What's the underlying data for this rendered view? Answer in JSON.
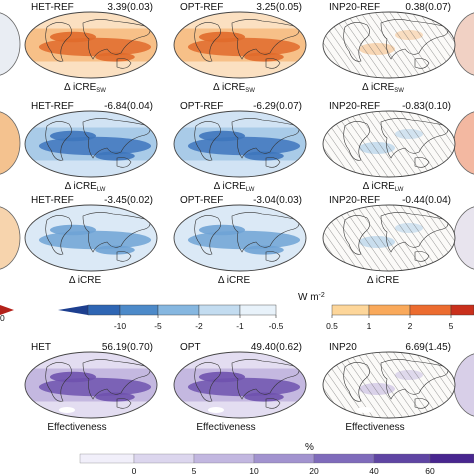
{
  "chart_data": {
    "type": "heatmap",
    "panels": [
      {
        "row": 0,
        "col": 0,
        "label": "HET-REF",
        "value": "3.39(0.03)",
        "caption": "Δ iCRE",
        "caption_sub": "SW",
        "palette": "warm",
        "intensity": 0.75
      },
      {
        "row": 0,
        "col": 1,
        "label": "OPT-REF",
        "value": "3.25(0.05)",
        "caption": "Δ iCRE",
        "caption_sub": "SW",
        "palette": "warm",
        "intensity": 0.72
      },
      {
        "row": 0,
        "col": 2,
        "label": "INP20-REF",
        "value": "0.38(0.07)",
        "caption": "Δ iCRE",
        "caption_sub": "SW",
        "palette": "warm",
        "intensity": 0.18,
        "hatched": true
      },
      {
        "row": 1,
        "col": 0,
        "label": "HET-REF",
        "value": "-6.84(0.04)",
        "caption": "Δ iCRE",
        "caption_sub": "LW",
        "palette": "cool",
        "intensity": 0.85
      },
      {
        "row": 1,
        "col": 1,
        "label": "OPT-REF",
        "value": "-6.29(0.07)",
        "caption": "Δ iCRE",
        "caption_sub": "LW",
        "palette": "cool",
        "intensity": 0.8
      },
      {
        "row": 1,
        "col": 2,
        "label": "INP20-REF",
        "value": "-0.83(0.10)",
        "caption": "Δ iCRE",
        "caption_sub": "LW",
        "palette": "cool",
        "intensity": 0.2,
        "hatched": true
      },
      {
        "row": 2,
        "col": 0,
        "label": "HET-REF",
        "value": "-3.45(0.02)",
        "caption": "Δ iCRE",
        "caption_sub": "",
        "palette": "cool",
        "intensity": 0.5
      },
      {
        "row": 2,
        "col": 1,
        "label": "OPT-REF",
        "value": "-3.04(0.03)",
        "caption": "Δ iCRE",
        "caption_sub": "",
        "palette": "cool",
        "intensity": 0.48
      },
      {
        "row": 2,
        "col": 2,
        "label": "INP20-REF",
        "value": "-0.44(0.04)",
        "caption": "Δ iCRE",
        "caption_sub": "",
        "palette": "cool",
        "intensity": 0.08,
        "hatched": true
      },
      {
        "row": 3,
        "col": 0,
        "label": "HET",
        "value": "56.19(0.70)",
        "caption": "Effectiveness",
        "caption_sub": "",
        "palette": "purple",
        "intensity": 0.85
      },
      {
        "row": 3,
        "col": 1,
        "label": "OPT",
        "value": "49.40(0.62)",
        "caption": "Effectiveness",
        "caption_sub": "",
        "palette": "purple",
        "intensity": 0.75
      },
      {
        "row": 3,
        "col": 2,
        "label": "INP20",
        "value": "6.69(1.45)",
        "caption": "Effectiveness",
        "caption_sub": "",
        "palette": "purple",
        "intensity": 0.12,
        "hatched": true
      }
    ],
    "colorbar_diverging": {
      "unit": "W m",
      "unit_sup": "-2",
      "ticks": [
        "-10",
        "-5",
        "-2",
        "-1",
        "-0.5",
        "0.5",
        "1",
        "2",
        "5"
      ],
      "colors": [
        "#1d3f8f",
        "#2f66b4",
        "#4d8ac9",
        "#86b7e0",
        "#c3dcf0",
        "#e8f2fa",
        "#ffffff",
        "#fff2c9",
        "#fdd69a",
        "#f9a95b",
        "#ec6c30",
        "#c9301c"
      ]
    },
    "colorbar_effectiveness": {
      "unit": "%",
      "ticks": [
        "0",
        "5",
        "10",
        "20",
        "40",
        "60"
      ],
      "colors": [
        "#f1effa",
        "#dcd6ee",
        "#c2b7e0",
        "#a293cf",
        "#7f6bbb",
        "#5f45a3",
        "#48268f"
      ]
    },
    "cropped_left_ticks": [
      "0"
    ]
  }
}
